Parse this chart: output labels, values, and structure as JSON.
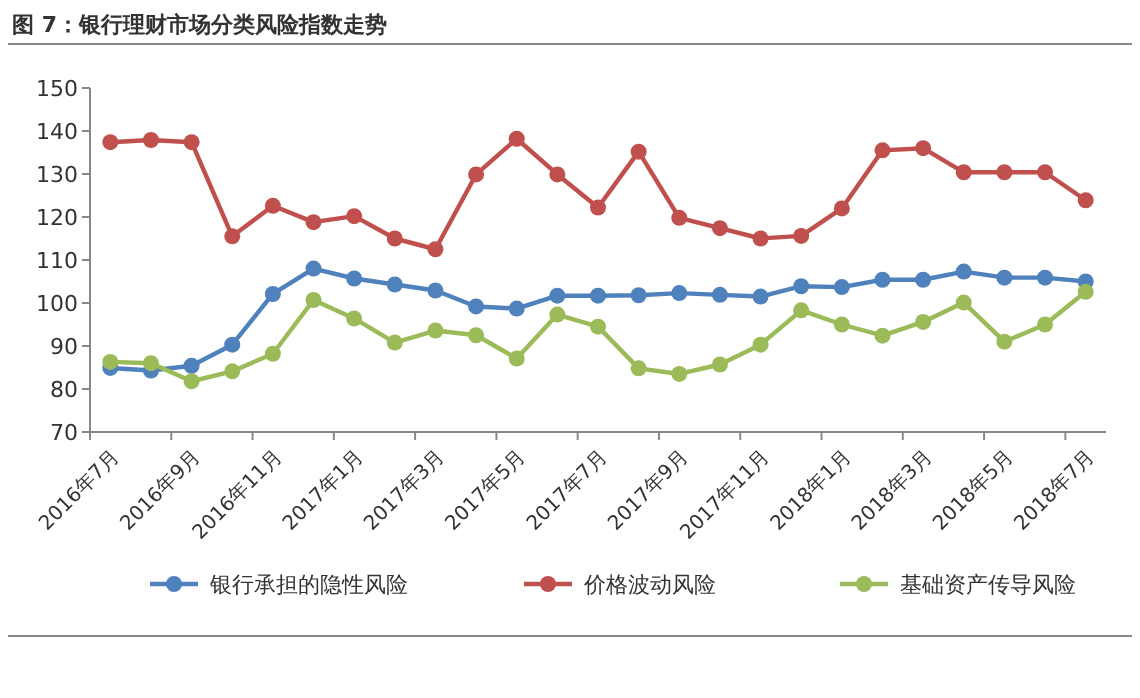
{
  "chart_data": {
    "type": "line",
    "title": "图 7：银行理财市场分类风险指数走势",
    "categories": [
      "2016年7月",
      null,
      "2016年9月",
      null,
      "2016年11月",
      null,
      "2017年1月",
      null,
      "2017年3月",
      null,
      "2017年5月",
      null,
      "2017年7月",
      null,
      "2017年9月",
      null,
      "2017年11月",
      null,
      "2018年1月",
      null,
      "2018年3月",
      null,
      "2018年5月",
      null,
      "2018年7月"
    ],
    "series": [
      {
        "name": "银行承担的隐性风险",
        "color": "#4f81bd",
        "values": [
          84.9,
          84.3,
          85.4,
          90.3,
          102.1,
          108,
          105.7,
          104.3,
          102.9,
          99.2,
          98.7,
          101.7,
          101.7,
          101.8,
          102.3,
          101.9,
          101.5,
          103.9,
          103.7,
          105.4,
          105.4,
          107.3,
          105.9,
          105.9,
          105
        ]
      },
      {
        "name": "价格波动风险",
        "color": "#c0504d",
        "values": [
          137.4,
          137.9,
          137.4,
          115.5,
          122.6,
          118.8,
          120.2,
          115,
          112.5,
          129.9,
          138.2,
          129.9,
          122.2,
          135.2,
          119.8,
          117.4,
          115,
          115.6,
          122,
          135.5,
          136,
          130.4,
          130.4,
          130.4,
          123.9
        ]
      },
      {
        "name": "基础资产传导风险",
        "color": "#9bbb59",
        "values": [
          86.3,
          86,
          81.8,
          84.1,
          88.2,
          100.7,
          96.4,
          90.8,
          93.6,
          92.5,
          87.1,
          97.3,
          94.5,
          84.8,
          83.5,
          85.7,
          90.3,
          98.3,
          95,
          92.4,
          95.6,
          100.1,
          91,
          95,
          102.6
        ]
      }
    ],
    "ylim": [
      70,
      150
    ],
    "yticks": [
      70,
      80,
      90,
      100,
      110,
      120,
      130,
      140,
      150
    ],
    "grid": false,
    "legend": "bottom",
    "marker": "circle",
    "line_style": "solid"
  }
}
